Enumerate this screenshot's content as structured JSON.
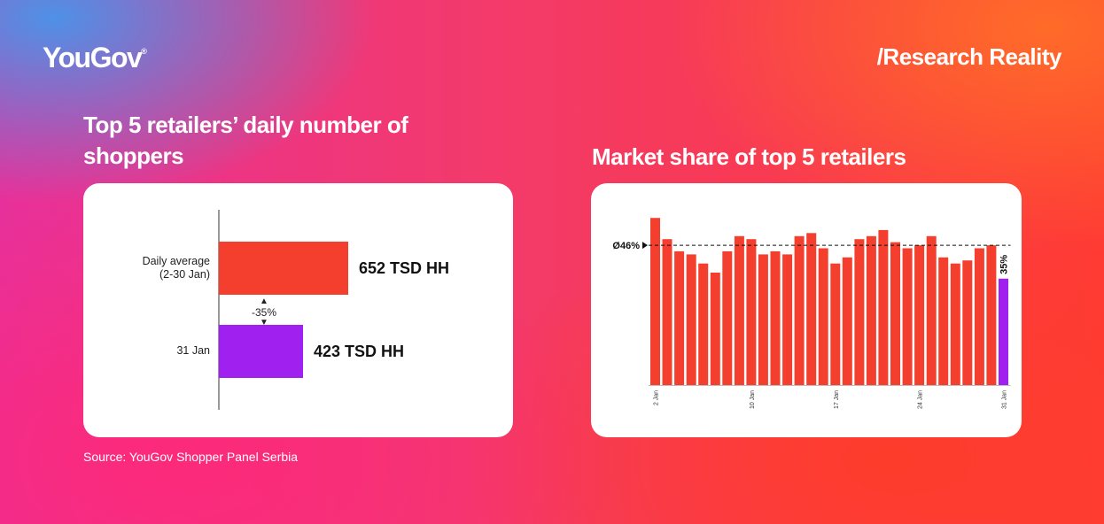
{
  "brand": {
    "logo": "YouGov",
    "logo_mark": "®",
    "tagline": "/Research Reality"
  },
  "left_title": "Top 5 retailers’ daily number of shoppers",
  "right_title": "Market share of top 5 retailers",
  "source": "Source: YouGov Shopper Panel Serbia",
  "colors": {
    "red": "#f43f2e",
    "purple": "#a020f0"
  },
  "chart_data": [
    {
      "type": "bar",
      "orientation": "horizontal",
      "categories": [
        "Daily average\n(2-30 Jan)",
        "31 Jan"
      ],
      "values": [
        652,
        423
      ],
      "value_labels": [
        "652 TSD HH",
        "423 TSD HH"
      ],
      "colors": [
        "#f43f2e",
        "#a020f0"
      ],
      "annotation": "-35%",
      "xlim": [
        0,
        1220
      ]
    },
    {
      "type": "bar",
      "x": [
        "2 Jan",
        "3 Jan",
        "4 Jan",
        "5 Jan",
        "6 Jan",
        "7 Jan",
        "8 Jan",
        "9 Jan",
        "10 Jan",
        "11 Jan",
        "12 Jan",
        "13 Jan",
        "14 Jan",
        "15 Jan",
        "16 Jan",
        "17 Jan",
        "18 Jan",
        "19 Jan",
        "20 Jan",
        "21 Jan",
        "22 Jan",
        "23 Jan",
        "24 Jan",
        "25 Jan",
        "26 Jan",
        "27 Jan",
        "28 Jan",
        "29 Jan",
        "30 Jan",
        "31 Jan"
      ],
      "tick_labels": [
        "2 Jan",
        "10 Jan",
        "17 Jan",
        "24 Jan",
        "31 Jan"
      ],
      "tick_indices": [
        0,
        8,
        15,
        22,
        29
      ],
      "values": [
        55,
        48,
        44,
        43,
        40,
        37,
        44,
        49,
        48,
        43,
        44,
        43,
        49,
        50,
        45,
        40,
        42,
        48,
        49,
        51,
        47,
        45,
        46,
        49,
        42,
        40,
        41,
        45,
        46,
        35
      ],
      "average": 46,
      "average_label": "Ø46%",
      "last_label": "35%",
      "bar_color": "#f43f2e",
      "highlight_color": "#a020f0",
      "ylim": [
        0,
        60
      ]
    }
  ]
}
